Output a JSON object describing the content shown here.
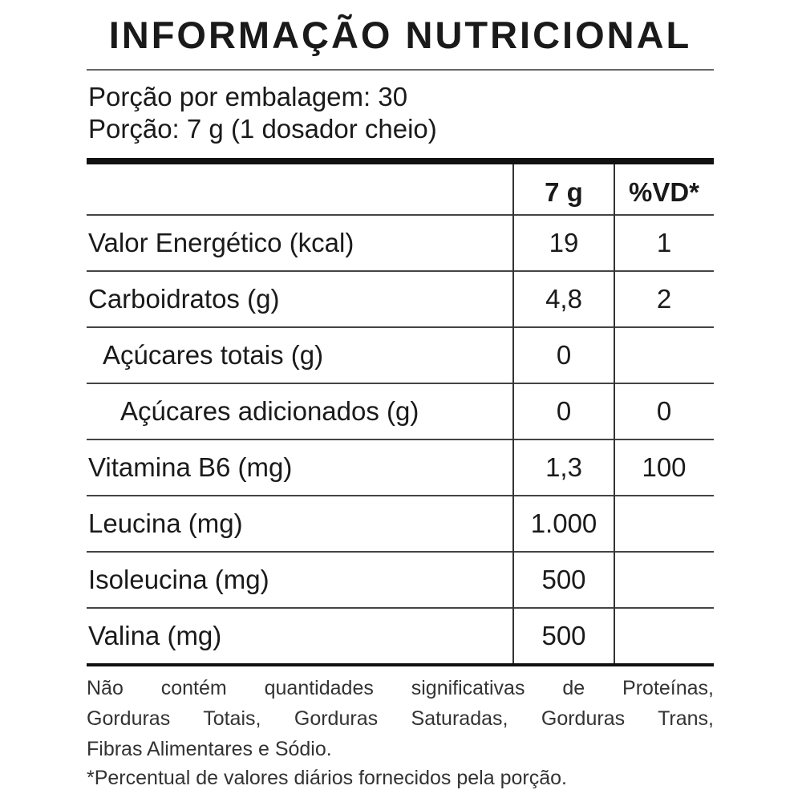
{
  "title": "INFORMAÇÃO NUTRICIONAL",
  "serving": {
    "per_package": "Porção por embalagem: 30",
    "portion": "Porção: 7 g (1 dosador cheio)"
  },
  "table": {
    "headers": {
      "label": "",
      "amount": "7 g",
      "vd": "%VD*"
    },
    "rows": [
      {
        "label": "Valor Energético (kcal)",
        "amount": "19",
        "vd": "1",
        "indent": 0
      },
      {
        "label": "Carboidratos (g)",
        "amount": "4,8",
        "vd": "2",
        "indent": 0
      },
      {
        "label": "Açúcares totais (g)",
        "amount": "0",
        "vd": "",
        "indent": 1
      },
      {
        "label": "Açúcares adicionados (g)",
        "amount": "0",
        "vd": "0",
        "indent": 2
      },
      {
        "label": "Vitamina B6 (mg)",
        "amount": "1,3",
        "vd": "100",
        "indent": 0
      },
      {
        "label": "Leucina (mg)",
        "amount": "1.000",
        "vd": "",
        "indent": 0
      },
      {
        "label": "Isoleucina (mg)",
        "amount": "500",
        "vd": "",
        "indent": 0
      },
      {
        "label": "Valina (mg)",
        "amount": "500",
        "vd": "",
        "indent": 0
      }
    ]
  },
  "footer": {
    "lines": [
      "Não contém quantidades significativas de Proteínas,",
      "Gorduras Totais, Gorduras Saturadas, Gorduras Trans,",
      "Fibras Alimentares e Sódio."
    ],
    "note": "*Percentual de valores diários fornecidos pela porção."
  }
}
